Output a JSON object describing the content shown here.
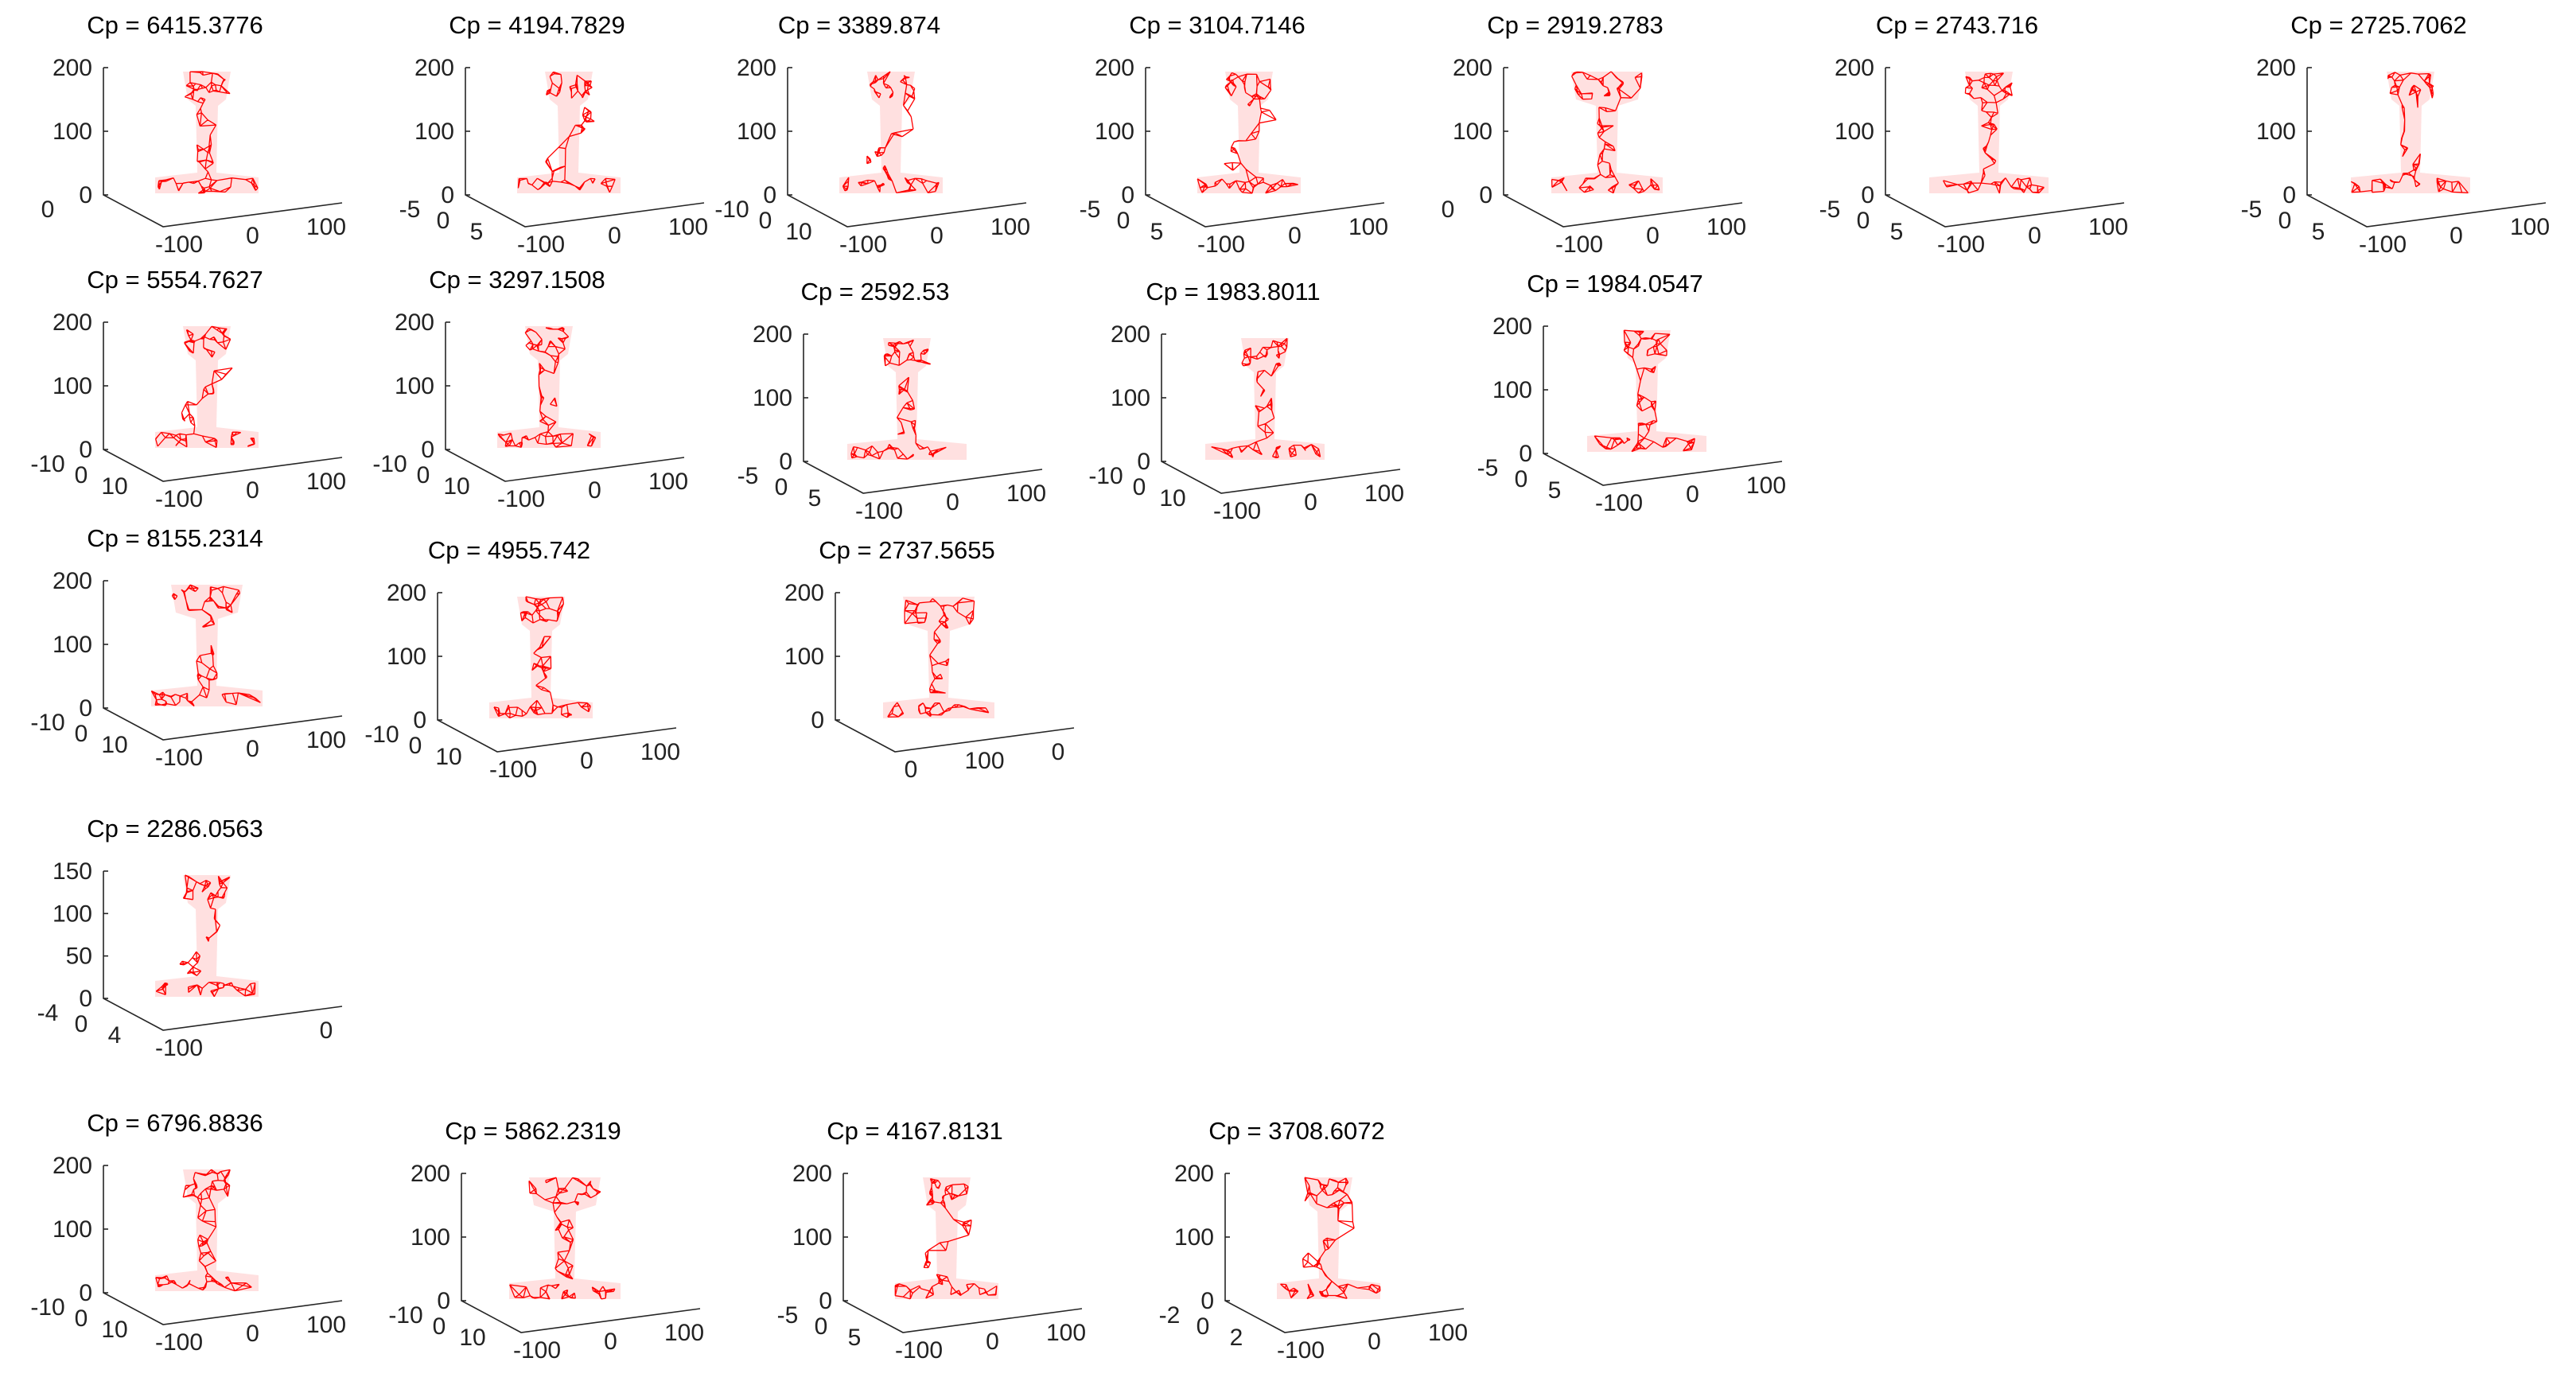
{
  "figure": {
    "background": "#ffffff",
    "mesh_color": "#ff0000",
    "axis_color": "#262626"
  },
  "chart_data": [
    {
      "type": "3d-mesh",
      "title": "Cp = 6415.3776",
      "shape": "rail",
      "zticks": [
        "0",
        "100",
        "200"
      ],
      "yticks": [
        "0"
      ],
      "xticks": [
        "-100",
        "0",
        "100"
      ]
    },
    {
      "type": "3d-mesh",
      "title": "Cp = 4194.7829",
      "shape": "twist",
      "zticks": [
        "0",
        "100",
        "200"
      ],
      "yticks": [
        "-5",
        "0",
        "5"
      ],
      "xticks": [
        "-100",
        "0",
        "100"
      ]
    },
    {
      "type": "3d-mesh",
      "title": "Cp = 3389.874",
      "shape": "twist",
      "zticks": [
        "0",
        "100",
        "200"
      ],
      "yticks": [
        "-10",
        "0",
        "10"
      ],
      "xticks": [
        "-100",
        "0",
        "100"
      ]
    },
    {
      "type": "3d-mesh",
      "title": "Cp = 3104.7146",
      "shape": "twist",
      "zticks": [
        "0",
        "100",
        "200"
      ],
      "yticks": [
        "-5",
        "0",
        "5"
      ],
      "xticks": [
        "-100",
        "0",
        "100"
      ]
    },
    {
      "type": "3d-mesh",
      "title": "Cp = 2919.2783",
      "shape": "wide",
      "zticks": [
        "0",
        "100",
        "200"
      ],
      "yticks": [
        "0"
      ],
      "xticks": [
        "-100",
        "0",
        "100"
      ]
    },
    {
      "type": "3d-mesh",
      "title": "Cp = 2743.716",
      "shape": "flat",
      "zticks": [
        "0",
        "100",
        "200"
      ],
      "yticks": [
        "-5",
        "0",
        "5"
      ],
      "xticks": [
        "-100",
        "0",
        "100"
      ]
    },
    {
      "type": "3d-mesh",
      "title": "Cp = 2725.7062",
      "shape": "flat",
      "zticks": [
        "0",
        "100",
        "200"
      ],
      "yticks": [
        "-5",
        "0",
        "5"
      ],
      "xticks": [
        "-100",
        "0",
        "100"
      ]
    },
    {
      "type": "3d-mesh",
      "title": "Cp = 5554.7627",
      "shape": "twist",
      "zticks": [
        "0",
        "100",
        "200"
      ],
      "yticks": [
        "-10",
        "0",
        "10"
      ],
      "xticks": [
        "-100",
        "0",
        "100"
      ]
    },
    {
      "type": "3d-mesh",
      "title": "Cp = 3297.1508",
      "shape": "rail",
      "zticks": [
        "0",
        "100",
        "200"
      ],
      "yticks": [
        "-10",
        "0",
        "10"
      ],
      "xticks": [
        "-100",
        "0",
        "100"
      ]
    },
    {
      "type": "3d-mesh",
      "title": "Cp = 2592.53",
      "shape": "flat",
      "zticks": [
        "0",
        "100",
        "200"
      ],
      "yticks": [
        "-5",
        "0",
        "5"
      ],
      "xticks": [
        "-100",
        "0",
        "100"
      ]
    },
    {
      "type": "3d-mesh",
      "title": "Cp = 1983.8011",
      "shape": "flat",
      "zticks": [
        "0",
        "100",
        "200"
      ],
      "yticks": [
        "-10",
        "0",
        "10"
      ],
      "xticks": [
        "-100",
        "0",
        "100"
      ]
    },
    {
      "type": "3d-mesh",
      "title": "Cp = 1984.0547",
      "shape": "flat",
      "zticks": [
        "0",
        "100",
        "200"
      ],
      "yticks": [
        "-5",
        "0",
        "5"
      ],
      "xticks": [
        "-100",
        "0",
        "100"
      ]
    },
    {
      "type": "3d-mesh",
      "title": "Cp = 8155.2314",
      "shape": "wide",
      "zticks": [
        "0",
        "100",
        "200"
      ],
      "yticks": [
        "-10",
        "0",
        "10"
      ],
      "xticks": [
        "-100",
        "0",
        "100"
      ]
    },
    {
      "type": "3d-mesh",
      "title": "Cp = 4955.742",
      "shape": "rail",
      "zticks": [
        "0",
        "100",
        "200"
      ],
      "yticks": [
        "-10",
        "0",
        "10"
      ],
      "xticks": [
        "-100",
        "0",
        "100"
      ]
    },
    {
      "type": "3d-mesh",
      "title": "Cp = 2737.5655",
      "shape": "wide",
      "zticks": [
        "0",
        "100",
        "200"
      ],
      "yticks": [],
      "xticks": [
        "0",
        "100",
        "0"
      ]
    },
    {
      "type": "3d-mesh",
      "title": "Cp = 2286.0563",
      "shape": "twist",
      "zticks": [
        "0",
        "50",
        "100",
        "150"
      ],
      "yticks": [
        "-4",
        "0",
        "4"
      ],
      "xticks": [
        "-100",
        "0"
      ]
    },
    {
      "type": "3d-mesh",
      "title": "Cp = 6796.8836",
      "shape": "rail",
      "zticks": [
        "0",
        "100",
        "200"
      ],
      "yticks": [
        "-10",
        "0",
        "10"
      ],
      "xticks": [
        "-100",
        "0",
        "100"
      ]
    },
    {
      "type": "3d-mesh",
      "title": "Cp = 5862.2319",
      "shape": "wide",
      "zticks": [
        "0",
        "100",
        "200"
      ],
      "yticks": [
        "-10",
        "0",
        "10"
      ],
      "xticks": [
        "-100",
        "0",
        "100"
      ]
    },
    {
      "type": "3d-mesh",
      "title": "Cp = 4167.8131",
      "shape": "twist",
      "zticks": [
        "0",
        "100",
        "200"
      ],
      "yticks": [
        "-5",
        "0",
        "5"
      ],
      "xticks": [
        "-100",
        "0",
        "100"
      ]
    },
    {
      "type": "3d-mesh",
      "title": "Cp = 3708.6072",
      "shape": "twist",
      "zticks": [
        "0",
        "100",
        "200"
      ],
      "yticks": [
        "-2",
        "0",
        "2"
      ],
      "xticks": [
        "-100",
        "0",
        "100"
      ]
    }
  ]
}
